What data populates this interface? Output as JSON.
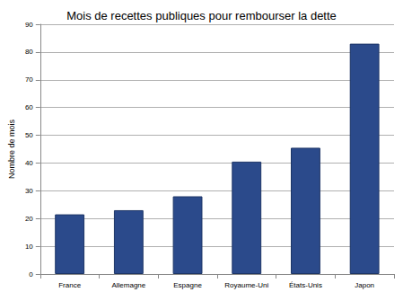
{
  "chart_data": {
    "type": "bar",
    "title": "Mois de recettes publiques pour rembourser la dette",
    "y_label": "Nombre de mois",
    "categories": [
      "France",
      "Allemagne",
      "Espagne",
      "Royaume-Uni",
      "États-Unis",
      "Japon"
    ],
    "values": [
      21.5,
      23,
      28,
      40.5,
      45.5,
      83
    ],
    "color": "#2b4a8b",
    "ylim": [
      0,
      90
    ],
    "yticks": [
      0,
      10,
      20,
      30,
      40,
      50,
      60,
      70,
      80,
      90
    ],
    "grid": true
  }
}
